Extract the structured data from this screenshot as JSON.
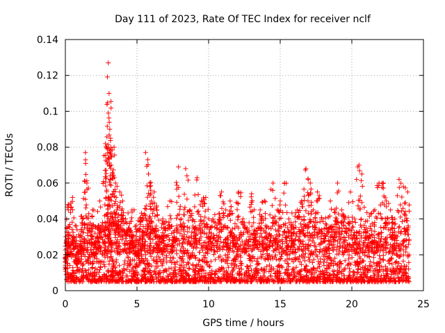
{
  "chart_data": {
    "type": "scatter",
    "title": "Day 111 of 2023, Rate Of TEC Index for receiver nclf",
    "xlabel": "GPS time / hours",
    "ylabel": "ROTI / TECUs",
    "xlim": [
      0,
      25
    ],
    "ylim": [
      0,
      0.14
    ],
    "xticks": [
      0,
      5,
      10,
      15,
      20,
      25
    ],
    "xtick_labels": [
      "0",
      "5",
      "10",
      "15",
      "20",
      "25"
    ],
    "yticks": [
      0,
      0.02,
      0.04,
      0.06,
      0.08,
      0.1,
      0.12,
      0.14
    ],
    "ytick_labels": [
      "0",
      "0.02",
      "0.04",
      "0.06",
      "0.08",
      "0.1",
      "0.12",
      "0.14"
    ],
    "grid": true,
    "marker": "plus",
    "color": "#ff0000",
    "series": [
      {
        "name": "ROTI",
        "x": [
          0.0,
          0.1,
          0.2,
          0.3,
          0.5,
          0.6,
          0.8,
          1.0,
          1.2,
          1.4,
          1.5,
          1.7,
          1.9,
          2.0,
          2.2,
          2.4,
          2.6,
          2.8,
          2.9,
          3.0,
          3.0,
          3.05,
          3.1,
          3.15,
          3.2,
          3.3,
          3.4,
          3.5,
          3.6,
          3.8,
          4.0,
          4.2,
          4.4,
          4.6,
          4.8,
          5.0,
          5.2,
          5.4,
          5.6,
          5.8,
          5.9,
          6.0,
          6.2,
          6.4,
          6.6,
          6.8,
          7.0,
          7.3,
          7.6,
          7.9,
          8.1,
          8.4,
          8.7,
          9.0,
          9.2,
          9.5,
          9.8,
          10.0,
          10.3,
          10.6,
          10.9,
          11.2,
          11.5,
          11.8,
          12.1,
          12.4,
          12.7,
          13.0,
          13.3,
          13.6,
          13.9,
          14.2,
          14.5,
          14.8,
          15.0,
          15.3,
          15.6,
          15.9,
          16.2,
          16.5,
          16.8,
          17.1,
          17.3,
          17.6,
          17.9,
          18.2,
          18.5,
          18.8,
          19.0,
          19.3,
          19.6,
          19.9,
          20.2,
          20.5,
          20.7,
          21.0,
          21.3,
          21.6,
          21.9,
          22.2,
          22.4,
          22.7,
          23.0,
          23.3,
          23.6,
          23.9
        ],
        "y": [
          0.012,
          0.035,
          0.048,
          0.02,
          0.052,
          0.03,
          0.015,
          0.025,
          0.04,
          0.077,
          0.06,
          0.035,
          0.045,
          0.02,
          0.03,
          0.05,
          0.038,
          0.082,
          0.072,
          0.099,
          0.127,
          0.11,
          0.09,
          0.085,
          0.07,
          0.065,
          0.08,
          0.06,
          0.045,
          0.055,
          0.05,
          0.04,
          0.035,
          0.03,
          0.045,
          0.02,
          0.03,
          0.042,
          0.077,
          0.065,
          0.06,
          0.05,
          0.055,
          0.045,
          0.03,
          0.04,
          0.035,
          0.05,
          0.03,
          0.069,
          0.04,
          0.068,
          0.045,
          0.035,
          0.063,
          0.05,
          0.052,
          0.03,
          0.04,
          0.035,
          0.055,
          0.045,
          0.05,
          0.03,
          0.055,
          0.04,
          0.035,
          0.054,
          0.03,
          0.045,
          0.05,
          0.035,
          0.06,
          0.045,
          0.05,
          0.06,
          0.04,
          0.035,
          0.045,
          0.05,
          0.068,
          0.06,
          0.045,
          0.055,
          0.04,
          0.035,
          0.05,
          0.045,
          0.06,
          0.045,
          0.035,
          0.055,
          0.04,
          0.07,
          0.065,
          0.035,
          0.03,
          0.045,
          0.06,
          0.06,
          0.05,
          0.045,
          0.04,
          0.062,
          0.058,
          0.055
        ],
        "baseline_band": [
          0.005,
          0.035
        ]
      }
    ]
  }
}
